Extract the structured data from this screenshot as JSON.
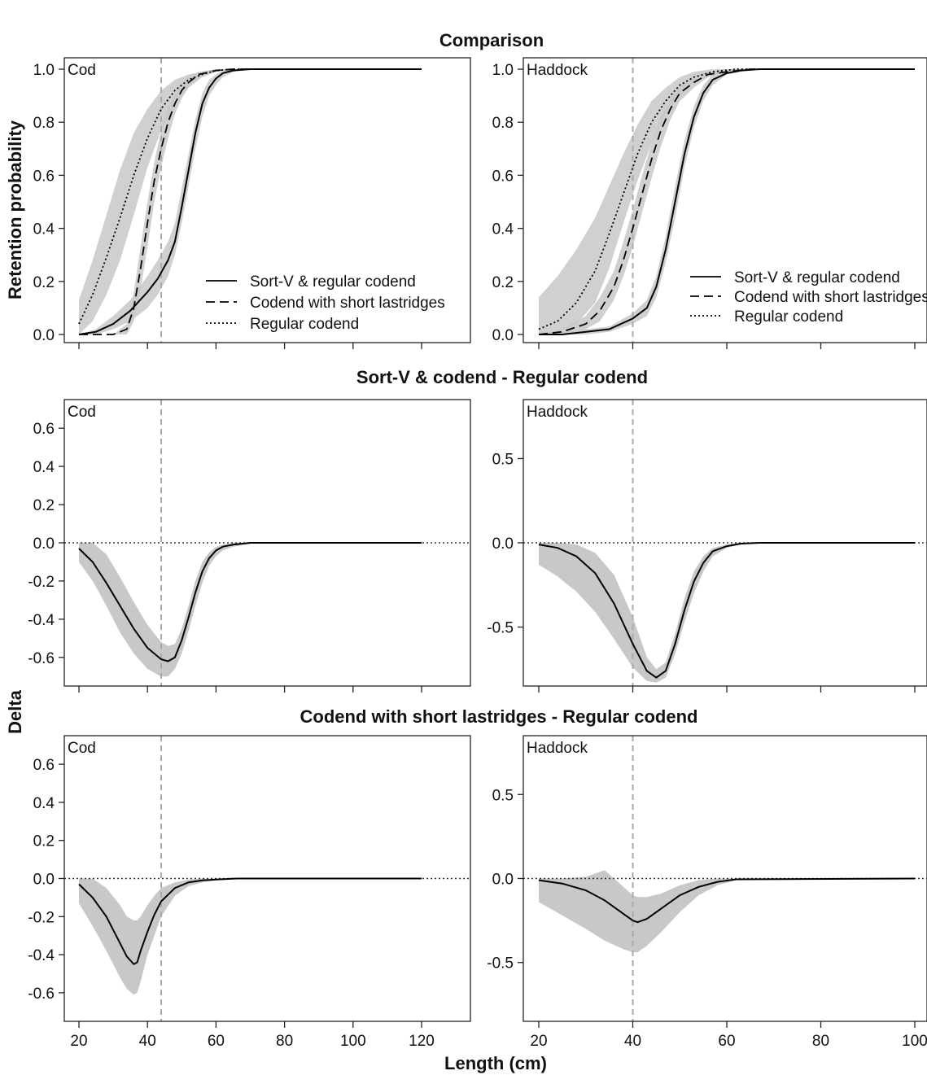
{
  "figure": {
    "row_titles": [
      "Comparison",
      "Sort-V & codend - Regular codend",
      "Codend with  short lastridges - Regular codend"
    ],
    "ylabel_top": "Retention probability",
    "ylabel_delta": "Delta",
    "xlabel": "Length (cm)",
    "legend": [
      "Sort-V & regular codend",
      "Codend with short lastridges",
      "Regular codend"
    ]
  },
  "chart_data": [
    {
      "type": "line",
      "panel": "Cod",
      "row": "Comparison",
      "xlim": [
        20,
        120
      ],
      "ylim": [
        0,
        1
      ],
      "x_ticks": [
        20,
        40,
        60,
        80,
        100,
        120
      ],
      "y_ticks": [
        0.0,
        0.2,
        0.4,
        0.6,
        0.8,
        1.0
      ],
      "y_tick_labels": [
        "0.0",
        "0.2",
        "0.4",
        "0.6",
        "0.8",
        "1.0"
      ],
      "ref_x": 44,
      "legend_position": "bottom-right",
      "series": [
        {
          "name": "Sort-V & regular codend",
          "style": "solid",
          "x": [
            20,
            25,
            30,
            35,
            40,
            43,
            46,
            48,
            50,
            52,
            54,
            56,
            58,
            60,
            62,
            65,
            70,
            75,
            120
          ],
          "y": [
            0.0,
            0.01,
            0.04,
            0.09,
            0.16,
            0.21,
            0.28,
            0.35,
            0.48,
            0.62,
            0.76,
            0.87,
            0.93,
            0.965,
            0.985,
            0.995,
            1.0,
            1.0,
            1.0
          ],
          "band_low": [
            0.0,
            0.0,
            0.02,
            0.05,
            0.1,
            0.15,
            0.22,
            0.3,
            0.42,
            0.56,
            0.7,
            0.82,
            0.9,
            0.94,
            0.97,
            0.99,
            1.0,
            1.0,
            1.0
          ],
          "band_high": [
            0.0,
            0.02,
            0.07,
            0.13,
            0.22,
            0.28,
            0.35,
            0.42,
            0.55,
            0.68,
            0.81,
            0.91,
            0.96,
            0.98,
            0.995,
            1.0,
            1.0,
            1.0,
            1.0
          ]
        },
        {
          "name": "Codend with short lastridges",
          "style": "dashed",
          "x": [
            20,
            30,
            34,
            36,
            38,
            40,
            42,
            44,
            46,
            48,
            50,
            52,
            55,
            60,
            65,
            120
          ],
          "y": [
            0.0,
            0.0,
            0.02,
            0.1,
            0.25,
            0.42,
            0.58,
            0.7,
            0.8,
            0.87,
            0.92,
            0.95,
            0.98,
            0.995,
            1.0,
            1.0
          ],
          "band_low": [
            0.0,
            0.0,
            0.0,
            0.05,
            0.17,
            0.33,
            0.5,
            0.63,
            0.74,
            0.83,
            0.89,
            0.93,
            0.97,
            0.99,
            1.0,
            1.0
          ],
          "band_high": [
            0.0,
            0.0,
            0.04,
            0.16,
            0.33,
            0.5,
            0.65,
            0.77,
            0.86,
            0.91,
            0.95,
            0.97,
            0.99,
            1.0,
            1.0,
            1.0
          ]
        },
        {
          "name": "Regular codend",
          "style": "dotted",
          "x": [
            20,
            24,
            28,
            32,
            36,
            40,
            44,
            48,
            52,
            56,
            60,
            65,
            120
          ],
          "y": [
            0.04,
            0.15,
            0.29,
            0.44,
            0.6,
            0.74,
            0.85,
            0.92,
            0.96,
            0.98,
            0.995,
            1.0,
            1.0
          ],
          "band_low": [
            0.0,
            0.05,
            0.15,
            0.28,
            0.45,
            0.63,
            0.77,
            0.87,
            0.93,
            0.97,
            0.99,
            1.0,
            1.0
          ],
          "band_high": [
            0.13,
            0.28,
            0.45,
            0.62,
            0.76,
            0.85,
            0.92,
            0.96,
            0.98,
            0.99,
            1.0,
            1.0,
            1.0
          ]
        }
      ]
    },
    {
      "type": "line",
      "panel": "Haddock",
      "row": "Comparison",
      "xlim": [
        20,
        100
      ],
      "ylim": [
        0,
        1
      ],
      "x_ticks": [
        20,
        40,
        60,
        80,
        100
      ],
      "y_ticks": [
        0.0,
        0.2,
        0.4,
        0.6,
        0.8,
        1.0
      ],
      "y_tick_labels": [
        "0.0",
        "0.2",
        "0.4",
        "0.6",
        "0.8",
        "1.0"
      ],
      "ref_x": 40,
      "legend_position": "bottom-right",
      "series": [
        {
          "name": "Sort-V & regular codend",
          "style": "solid",
          "x": [
            20,
            25,
            30,
            35,
            40,
            43,
            45,
            47,
            49,
            51,
            53,
            55,
            57,
            60,
            63,
            67,
            100
          ],
          "y": [
            0.0,
            0.0,
            0.01,
            0.02,
            0.06,
            0.1,
            0.18,
            0.32,
            0.5,
            0.68,
            0.82,
            0.91,
            0.96,
            0.985,
            0.995,
            1.0,
            1.0
          ],
          "band_low": [
            0.0,
            0.0,
            0.0,
            0.01,
            0.04,
            0.07,
            0.14,
            0.27,
            0.44,
            0.63,
            0.78,
            0.88,
            0.94,
            0.98,
            0.99,
            1.0,
            1.0
          ],
          "band_high": [
            0.01,
            0.01,
            0.02,
            0.03,
            0.08,
            0.13,
            0.22,
            0.37,
            0.56,
            0.73,
            0.86,
            0.94,
            0.98,
            0.99,
            1.0,
            1.0,
            1.0
          ]
        },
        {
          "name": "Codend with short lastridges",
          "style": "dashed",
          "x": [
            20,
            25,
            30,
            33,
            36,
            38,
            40,
            42,
            44,
            46,
            48,
            50,
            53,
            56,
            60,
            65,
            100
          ],
          "y": [
            0.0,
            0.01,
            0.04,
            0.09,
            0.18,
            0.28,
            0.4,
            0.53,
            0.66,
            0.77,
            0.85,
            0.91,
            0.95,
            0.98,
            0.99,
            1.0,
            1.0
          ],
          "band_low": [
            0.0,
            0.0,
            0.02,
            0.05,
            0.13,
            0.22,
            0.33,
            0.46,
            0.59,
            0.71,
            0.81,
            0.88,
            0.93,
            0.97,
            0.99,
            1.0,
            1.0
          ],
          "band_high": [
            0.0,
            0.02,
            0.07,
            0.14,
            0.24,
            0.35,
            0.47,
            0.6,
            0.72,
            0.82,
            0.89,
            0.94,
            0.97,
            0.99,
            1.0,
            1.0,
            1.0
          ]
        },
        {
          "name": "Regular codend",
          "style": "dotted",
          "x": [
            20,
            24,
            28,
            32,
            35,
            38,
            41,
            44,
            47,
            50,
            53,
            57,
            62,
            100
          ],
          "y": [
            0.02,
            0.05,
            0.12,
            0.24,
            0.38,
            0.53,
            0.68,
            0.8,
            0.88,
            0.94,
            0.97,
            0.99,
            1.0,
            1.0
          ],
          "band_low": [
            0.0,
            0.01,
            0.04,
            0.12,
            0.25,
            0.42,
            0.58,
            0.72,
            0.83,
            0.9,
            0.95,
            0.98,
            1.0,
            1.0
          ],
          "band_high": [
            0.14,
            0.22,
            0.32,
            0.44,
            0.56,
            0.68,
            0.79,
            0.88,
            0.93,
            0.97,
            0.99,
            1.0,
            1.0,
            1.0
          ]
        }
      ]
    },
    {
      "type": "line",
      "panel": "Cod",
      "row": "Sort-V & codend - Regular codend",
      "xlim": [
        20,
        120
      ],
      "ylim": [
        -0.75,
        0.75
      ],
      "x_ticks": [
        20,
        40,
        60,
        80,
        100,
        120
      ],
      "y_ticks": [
        -0.6,
        -0.4,
        -0.2,
        0.0,
        0.2,
        0.4,
        0.6
      ],
      "y_tick_labels": [
        "-0.6",
        "-0.4",
        "-0.2",
        "0.0",
        "0.2",
        "0.4",
        "0.6"
      ],
      "ref_x": 44,
      "zero_line": true,
      "series": [
        {
          "name": "",
          "style": "solid",
          "x": [
            20,
            24,
            28,
            32,
            36,
            40,
            44,
            46,
            48,
            50,
            52,
            54,
            56,
            58,
            60,
            62,
            65,
            70,
            75,
            120
          ],
          "y": [
            -0.03,
            -0.1,
            -0.21,
            -0.33,
            -0.45,
            -0.55,
            -0.61,
            -0.62,
            -0.6,
            -0.51,
            -0.39,
            -0.26,
            -0.15,
            -0.08,
            -0.04,
            -0.02,
            -0.01,
            0.0,
            0.0,
            0.0
          ],
          "band_low": [
            -0.1,
            -0.2,
            -0.33,
            -0.47,
            -0.58,
            -0.66,
            -0.7,
            -0.7,
            -0.66,
            -0.58,
            -0.46,
            -0.33,
            -0.21,
            -0.12,
            -0.07,
            -0.04,
            -0.02,
            -0.005,
            0.0,
            0.0
          ],
          "band_high": [
            0.0,
            0.0,
            -0.06,
            -0.18,
            -0.31,
            -0.43,
            -0.52,
            -0.54,
            -0.53,
            -0.45,
            -0.33,
            -0.2,
            -0.1,
            -0.05,
            -0.02,
            -0.01,
            0.0,
            0.0,
            0.0,
            0.0
          ]
        }
      ]
    },
    {
      "type": "line",
      "panel": "Haddock",
      "row": "Sort-V & codend - Regular codend",
      "xlim": [
        20,
        100
      ],
      "ylim": [
        -0.85,
        0.85
      ],
      "x_ticks": [
        20,
        40,
        60,
        80,
        100
      ],
      "y_ticks": [
        -0.5,
        0.0,
        0.5
      ],
      "y_tick_labels": [
        "-0.5",
        "0.0",
        "0.5"
      ],
      "ref_x": 40,
      "zero_line": true,
      "series": [
        {
          "name": "",
          "style": "solid",
          "x": [
            20,
            24,
            28,
            32,
            36,
            40,
            43,
            45,
            47,
            49,
            51,
            53,
            55,
            57,
            60,
            63,
            67,
            100
          ],
          "y": [
            -0.01,
            -0.03,
            -0.08,
            -0.18,
            -0.36,
            -0.6,
            -0.76,
            -0.8,
            -0.76,
            -0.6,
            -0.4,
            -0.23,
            -0.12,
            -0.05,
            -0.02,
            -0.005,
            0.0,
            0.0
          ],
          "band_low": [
            -0.13,
            -0.2,
            -0.29,
            -0.41,
            -0.57,
            -0.74,
            -0.82,
            -0.83,
            -0.8,
            -0.66,
            -0.47,
            -0.3,
            -0.17,
            -0.08,
            -0.03,
            -0.01,
            0.0,
            0.0
          ],
          "band_high": [
            0.0,
            0.0,
            -0.01,
            -0.06,
            -0.19,
            -0.44,
            -0.68,
            -0.75,
            -0.71,
            -0.54,
            -0.33,
            -0.17,
            -0.08,
            -0.03,
            -0.01,
            0.0,
            0.0,
            0.0
          ]
        }
      ]
    },
    {
      "type": "line",
      "panel": "Cod",
      "row": "Codend with  short lastridges - Regular codend",
      "xlim": [
        20,
        120
      ],
      "ylim": [
        -0.75,
        0.75
      ],
      "x_ticks": [
        20,
        40,
        60,
        80,
        100,
        120
      ],
      "y_ticks": [
        -0.6,
        -0.4,
        -0.2,
        0.0,
        0.2,
        0.4,
        0.6
      ],
      "y_tick_labels": [
        "-0.6",
        "-0.4",
        "-0.2",
        "0.0",
        "0.2",
        "0.4",
        "0.6"
      ],
      "ref_x": 44,
      "zero_line": true,
      "series": [
        {
          "name": "",
          "style": "solid",
          "x": [
            20,
            24,
            28,
            32,
            34,
            36,
            37,
            38,
            40,
            42,
            44,
            48,
            52,
            56,
            60,
            66,
            120
          ],
          "y": [
            -0.03,
            -0.1,
            -0.2,
            -0.34,
            -0.41,
            -0.45,
            -0.44,
            -0.38,
            -0.28,
            -0.19,
            -0.12,
            -0.05,
            -0.02,
            -0.01,
            -0.005,
            0.0,
            0.0
          ],
          "band_low": [
            -0.13,
            -0.25,
            -0.38,
            -0.52,
            -0.58,
            -0.61,
            -0.6,
            -0.54,
            -0.4,
            -0.3,
            -0.2,
            -0.09,
            -0.04,
            -0.02,
            -0.01,
            0.0,
            0.0
          ],
          "band_high": [
            0.0,
            0.0,
            -0.05,
            -0.14,
            -0.2,
            -0.22,
            -0.22,
            -0.2,
            -0.14,
            -0.09,
            -0.05,
            -0.02,
            -0.005,
            0.0,
            0.0,
            0.0,
            0.0
          ]
        }
      ]
    },
    {
      "type": "line",
      "panel": "Haddock",
      "row": "Codend with  short lastridges - Regular codend",
      "xlim": [
        20,
        100
      ],
      "ylim": [
        -0.85,
        0.85
      ],
      "x_ticks": [
        20,
        40,
        60,
        80,
        100
      ],
      "y_ticks": [
        -0.5,
        0.0,
        0.5
      ],
      "y_tick_labels": [
        "-0.5",
        "0.0",
        "0.5"
      ],
      "ref_x": 40,
      "zero_line": true,
      "series": [
        {
          "name": "",
          "style": "solid",
          "x": [
            20,
            25,
            30,
            34,
            38,
            40,
            41,
            43,
            46,
            50,
            54,
            58,
            62,
            100
          ],
          "y": [
            -0.01,
            -0.03,
            -0.07,
            -0.13,
            -0.21,
            -0.25,
            -0.26,
            -0.24,
            -0.18,
            -0.1,
            -0.05,
            -0.02,
            -0.005,
            0.0
          ],
          "band_low": [
            -0.14,
            -0.22,
            -0.3,
            -0.37,
            -0.42,
            -0.44,
            -0.44,
            -0.4,
            -0.32,
            -0.2,
            -0.1,
            -0.04,
            -0.01,
            0.0
          ],
          "band_high": [
            0.0,
            0.0,
            0.01,
            0.05,
            -0.05,
            -0.1,
            -0.11,
            -0.11,
            -0.09,
            -0.04,
            -0.01,
            0.0,
            0.0,
            0.0
          ]
        }
      ]
    }
  ]
}
